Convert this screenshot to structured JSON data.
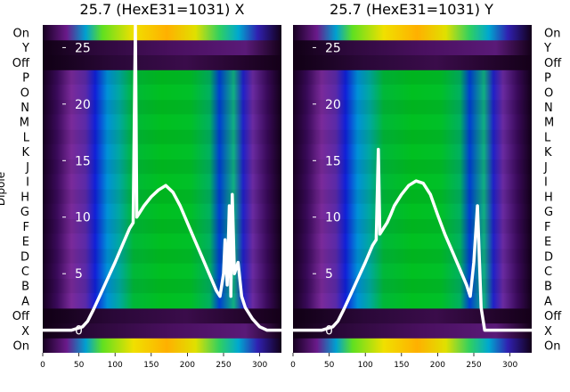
{
  "chart_data": [
    {
      "type": "heatmap",
      "title": "25.7 (HexE31=1031) X",
      "ylabel": "Dipole",
      "row_labels": [
        "On",
        "X",
        "Off",
        "A",
        "B",
        "C",
        "D",
        "E",
        "F",
        "G",
        "H",
        "I",
        "J",
        "K",
        "L",
        "M",
        "N",
        "O",
        "P",
        "Off",
        "Y",
        "On"
      ],
      "xlim": [
        0,
        330
      ],
      "xticks": [
        0,
        50,
        100,
        150,
        200,
        250,
        300
      ],
      "overlay_ylim": [
        -2,
        27
      ],
      "overlay_yticks": [
        0,
        5,
        10,
        15,
        20,
        25
      ],
      "overlay_series": [
        {
          "x": [
            0,
            20,
            40,
            55,
            62,
            70,
            80,
            90,
            100,
            110,
            120,
            125,
            128,
            130,
            135,
            140,
            150,
            160,
            170,
            180,
            190,
            200,
            210,
            220,
            230,
            240,
            245,
            250,
            252,
            255,
            258,
            260,
            262,
            265,
            270,
            275,
            280,
            290,
            300,
            310,
            330
          ],
          "y": [
            0,
            0,
            0,
            0.3,
            0.8,
            1.8,
            3.2,
            4.6,
            6,
            7.5,
            9,
            9.5,
            27,
            10,
            10.5,
            11,
            11.8,
            12.4,
            12.8,
            12.2,
            11,
            9.5,
            8,
            6.5,
            5,
            3.5,
            3,
            5,
            8,
            4,
            11,
            3,
            12,
            5,
            6,
            3,
            2,
            1,
            0.3,
            0,
            0
          ]
        }
      ]
    },
    {
      "type": "heatmap",
      "title": "25.7 (HexE31=1031) Y",
      "ylabel": "",
      "row_labels": [
        "On",
        "X",
        "Off",
        "A",
        "B",
        "C",
        "D",
        "E",
        "F",
        "G",
        "H",
        "I",
        "J",
        "K",
        "L",
        "M",
        "N",
        "O",
        "P",
        "Off",
        "Y",
        "On"
      ],
      "xlim": [
        0,
        330
      ],
      "xticks": [
        0,
        50,
        100,
        150,
        200,
        250,
        300
      ],
      "overlay_ylim": [
        -2,
        27
      ],
      "overlay_yticks": [
        0,
        5,
        10,
        15,
        20,
        25
      ],
      "overlay_series": [
        {
          "x": [
            0,
            20,
            40,
            55,
            62,
            70,
            80,
            90,
            100,
            110,
            115,
            118,
            120,
            125,
            130,
            135,
            140,
            150,
            160,
            170,
            180,
            190,
            200,
            210,
            220,
            230,
            240,
            245,
            250,
            255,
            260,
            265,
            270,
            330
          ],
          "y": [
            0,
            0,
            0,
            0.3,
            0.8,
            1.8,
            3.2,
            4.6,
            6,
            7.5,
            8,
            16,
            8.5,
            9,
            9.5,
            10.2,
            11,
            12,
            12.8,
            13.2,
            13,
            12,
            10.2,
            8.5,
            7,
            5.5,
            4,
            3,
            6,
            11,
            2,
            0,
            0,
            0
          ]
        }
      ]
    }
  ]
}
